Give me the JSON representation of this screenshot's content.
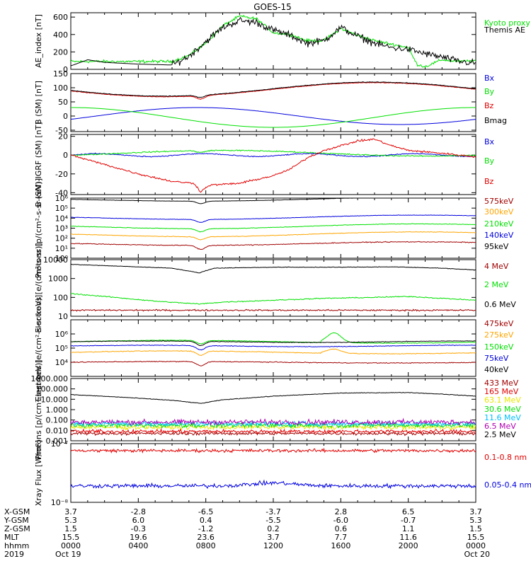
{
  "title": "GOES-15",
  "colors": {
    "black": "#000000",
    "red": "#e00000",
    "green": "#00e000",
    "blue": "#0000dd",
    "orange": "#ffa500",
    "darkred": "#a00000",
    "cyan": "#00c0ff",
    "magenta": "#b000b0",
    "yellow": "#e8e800"
  },
  "chart_data": [
    {
      "type": "line",
      "panel": "ae",
      "ylabel": "AE_index [nT]",
      "ylim": [
        0,
        650
      ],
      "yticks": [
        "0",
        "200",
        "400",
        "600"
      ],
      "series": [
        {
          "name": "Kyoto proxy AE",
          "color": "green",
          "shape": "ae_green"
        },
        {
          "name": "Themis AE",
          "color": "black",
          "shape": "ae_black"
        }
      ]
    },
    {
      "type": "line",
      "panel": "b",
      "ylabel": "B (SM) [nT]",
      "ylim": [
        -55,
        150
      ],
      "yticks": [
        "-50",
        "0",
        "50",
        "100",
        "150"
      ],
      "series": [
        {
          "name": "Bx",
          "color": "blue",
          "shape": "b_bx"
        },
        {
          "name": "By",
          "color": "green",
          "shape": "b_by"
        },
        {
          "name": "Bz",
          "color": "red",
          "shape": "b_bz"
        },
        {
          "name": "Bmag",
          "color": "black",
          "shape": "b_bmag"
        }
      ]
    },
    {
      "type": "line",
      "panel": "dbigrf",
      "ylabel": "B (SM)-IGRF (SM) [nT]",
      "ylim": [
        -42,
        22
      ],
      "yticks": [
        "-40",
        "-20",
        "0",
        "20"
      ],
      "series": [
        {
          "name": "Bx",
          "color": "blue",
          "shape": "d_bx"
        },
        {
          "name": "By",
          "color": "green",
          "shape": "d_by"
        },
        {
          "name": "Bz",
          "color": "red",
          "shape": "d_bz"
        }
      ]
    },
    {
      "type": "line",
      "panel": "protons_low",
      "ylabel": "Protons [p/(cm²-s-sr-keV)]",
      "ylog": true,
      "ylim": [
        1,
        1000000
      ],
      "yticks": [
        "10⁰",
        "10¹",
        "10²",
        "10³",
        "10⁴",
        "10⁵",
        "10⁶"
      ],
      "series": [
        {
          "name": "575keV",
          "color": "darkred",
          "shape": "p_575"
        },
        {
          "name": "300keV",
          "color": "orange",
          "shape": "p_300"
        },
        {
          "name": "210keV",
          "color": "green",
          "shape": "p_210"
        },
        {
          "name": "140keV",
          "color": "blue",
          "shape": "p_140"
        },
        {
          "name": "95keV",
          "color": "black",
          "shape": "p_95"
        }
      ]
    },
    {
      "type": "line",
      "panel": "electrons_high",
      "ylabel": "Electrons [e/(cm²-s-sr)]",
      "ylog": true,
      "ylim": [
        10,
        10000
      ],
      "yticks": [
        "10",
        "100",
        "1000",
        "10000"
      ],
      "series": [
        {
          "name": "4 MeV",
          "color": "darkred",
          "shape": "e_4"
        },
        {
          "name": "2 MeV",
          "color": "green",
          "shape": "e_2"
        },
        {
          "name": "0.6 MeV",
          "color": "black",
          "shape": "e_06"
        }
      ]
    },
    {
      "type": "line",
      "panel": "electrons_low",
      "ylabel": "Electrons [e/(cm²-s-sr-keV)]",
      "ylog": true,
      "ylim": [
        1000,
        10000000
      ],
      "yticks": [
        "10⁴",
        "10⁵",
        "10⁶"
      ],
      "series": [
        {
          "name": "475keV",
          "color": "darkred",
          "shape": "el_475"
        },
        {
          "name": "275keV",
          "color": "orange",
          "shape": "el_275"
        },
        {
          "name": "150keV",
          "color": "green",
          "shape": "el_150"
        },
        {
          "name": "75keV",
          "color": "blue",
          "shape": "el_75"
        },
        {
          "name": "40keV",
          "color": "black",
          "shape": "el_40"
        }
      ]
    },
    {
      "type": "line",
      "panel": "protons_high",
      "ylabel": "Protons [p/(cm²-s-sr-keV)]",
      "ylog": true,
      "ylim": [
        0.001,
        1000
      ],
      "yticks": [
        "0.001",
        "0.010",
        "0.100",
        "1.000",
        "10.000",
        "100.000",
        "1000.000"
      ],
      "series": [
        {
          "name": "433 MeV",
          "color": "darkred",
          "shape": "ph_433"
        },
        {
          "name": "165 MeV",
          "color": "red",
          "shape": "ph_165"
        },
        {
          "name": "63.1 MeV",
          "color": "yellow",
          "shape": "ph_63"
        },
        {
          "name": "30.6 MeV",
          "color": "green",
          "shape": "ph_30"
        },
        {
          "name": "11.6 MeV",
          "color": "cyan",
          "shape": "ph_11"
        },
        {
          "name": "6.5 MeV",
          "color": "magenta",
          "shape": "ph_6"
        },
        {
          "name": "2.5 MeV",
          "color": "black",
          "shape": "ph_2"
        }
      ]
    },
    {
      "type": "line",
      "panel": "xray",
      "ylabel": "Xray Flux [W/m²]",
      "ylog": true,
      "ylim": [
        1e-08,
        1e-07
      ],
      "yticks": [
        "10⁻⁸",
        "10⁻⁷"
      ],
      "series": [
        {
          "name": "0.1-0.8 nm",
          "color": "red",
          "shape": "x_long"
        },
        {
          "name": "0.05-0.4 nm",
          "color": "blue",
          "shape": "x_short"
        }
      ]
    }
  ],
  "footer": {
    "rows": [
      {
        "label": "X-GSM",
        "values": [
          "3.7",
          "-2.8",
          "-6.5",
          "-3.7",
          "2.8",
          "6.5",
          "3.7"
        ]
      },
      {
        "label": "Y-GSM",
        "values": [
          "5.3",
          "6.0",
          "0.4",
          "-5.5",
          "-6.0",
          "-0.7",
          "5.3"
        ]
      },
      {
        "label": "Z-GSM",
        "values": [
          "1.5",
          "-0.3",
          "-1.2",
          "0.2",
          "0.6",
          "1.1",
          "1.5"
        ]
      },
      {
        "label": "MLT",
        "values": [
          "15.5",
          "19.6",
          "23.6",
          "3.7",
          "7.7",
          "11.6",
          "15.5"
        ]
      },
      {
        "label": "hhmm",
        "values": [
          "0000",
          "0400",
          "0800",
          "1200",
          "1600",
          "2000",
          "0000"
        ]
      },
      {
        "label": "2019",
        "values": [
          "Oct 19",
          "",
          "",
          "",
          "",
          "",
          "Oct 20"
        ]
      }
    ]
  }
}
